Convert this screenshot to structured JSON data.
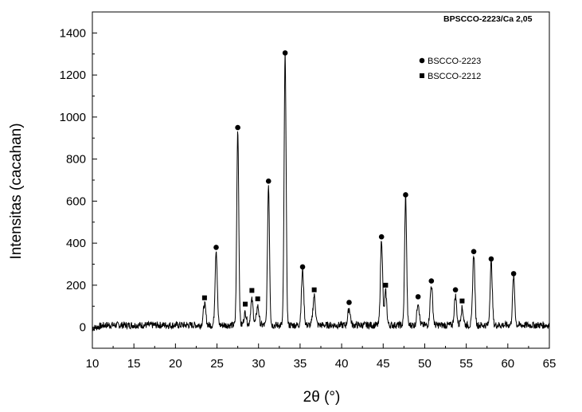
{
  "chart_data": {
    "type": "line",
    "title": "",
    "annotation": "BPSCCO-2223/Ca 2,05",
    "xlabel": "2θ (°)",
    "ylabel": "Intensitas (cacahan)",
    "xlim": [
      10,
      65
    ],
    "ylim": [
      -100,
      1500
    ],
    "x_ticks": [
      10,
      15,
      20,
      25,
      30,
      35,
      40,
      45,
      50,
      55,
      60,
      65
    ],
    "y_ticks": [
      0,
      200,
      400,
      600,
      800,
      1000,
      1200,
      1400
    ],
    "grid": false,
    "legend_position": "top-right",
    "legend": [
      {
        "label": "BSCCO-2223",
        "marker": "circle"
      },
      {
        "label": "BSCCO-2212",
        "marker": "square"
      }
    ],
    "series": [
      {
        "color": "#000000",
        "baseline": 10,
        "peaks": [
          {
            "x": 23.5,
            "y": 100,
            "w": 0.15
          },
          {
            "x": 24.9,
            "y": 360,
            "w": 0.13
          },
          {
            "x": 27.5,
            "y": 930,
            "w": 0.12
          },
          {
            "x": 28.4,
            "y": 60,
            "w": 0.15
          },
          {
            "x": 29.2,
            "y": 120,
            "w": 0.15
          },
          {
            "x": 29.9,
            "y": 90,
            "w": 0.15
          },
          {
            "x": 31.2,
            "y": 670,
            "w": 0.12
          },
          {
            "x": 33.2,
            "y": 1290,
            "w": 0.12
          },
          {
            "x": 35.3,
            "y": 260,
            "w": 0.14
          },
          {
            "x": 36.7,
            "y": 140,
            "w": 0.15
          },
          {
            "x": 40.9,
            "y": 80,
            "w": 0.15
          },
          {
            "x": 44.8,
            "y": 410,
            "w": 0.13
          },
          {
            "x": 45.3,
            "y": 160,
            "w": 0.13
          },
          {
            "x": 47.7,
            "y": 610,
            "w": 0.12
          },
          {
            "x": 49.2,
            "y": 110,
            "w": 0.14
          },
          {
            "x": 50.8,
            "y": 190,
            "w": 0.15
          },
          {
            "x": 53.7,
            "y": 140,
            "w": 0.14
          },
          {
            "x": 54.5,
            "y": 80,
            "w": 0.15
          },
          {
            "x": 55.9,
            "y": 340,
            "w": 0.13
          },
          {
            "x": 58.0,
            "y": 300,
            "w": 0.13
          },
          {
            "x": 60.7,
            "y": 230,
            "w": 0.13
          }
        ]
      }
    ],
    "markers_2223": [
      {
        "x": 24.9,
        "y": 380
      },
      {
        "x": 27.5,
        "y": 950
      },
      {
        "x": 31.2,
        "y": 695
      },
      {
        "x": 33.2,
        "y": 1305
      },
      {
        "x": 35.3,
        "y": 287
      },
      {
        "x": 40.9,
        "y": 118
      },
      {
        "x": 44.8,
        "y": 430
      },
      {
        "x": 47.7,
        "y": 630
      },
      {
        "x": 49.2,
        "y": 145
      },
      {
        "x": 50.8,
        "y": 220
      },
      {
        "x": 53.7,
        "y": 178
      },
      {
        "x": 55.9,
        "y": 360
      },
      {
        "x": 58.0,
        "y": 325
      },
      {
        "x": 60.7,
        "y": 255
      }
    ],
    "markers_2212": [
      {
        "x": 23.5,
        "y": 140
      },
      {
        "x": 28.4,
        "y": 110
      },
      {
        "x": 29.2,
        "y": 175
      },
      {
        "x": 29.9,
        "y": 135
      },
      {
        "x": 36.7,
        "y": 178
      },
      {
        "x": 45.3,
        "y": 200
      },
      {
        "x": 54.5,
        "y": 125
      }
    ]
  }
}
